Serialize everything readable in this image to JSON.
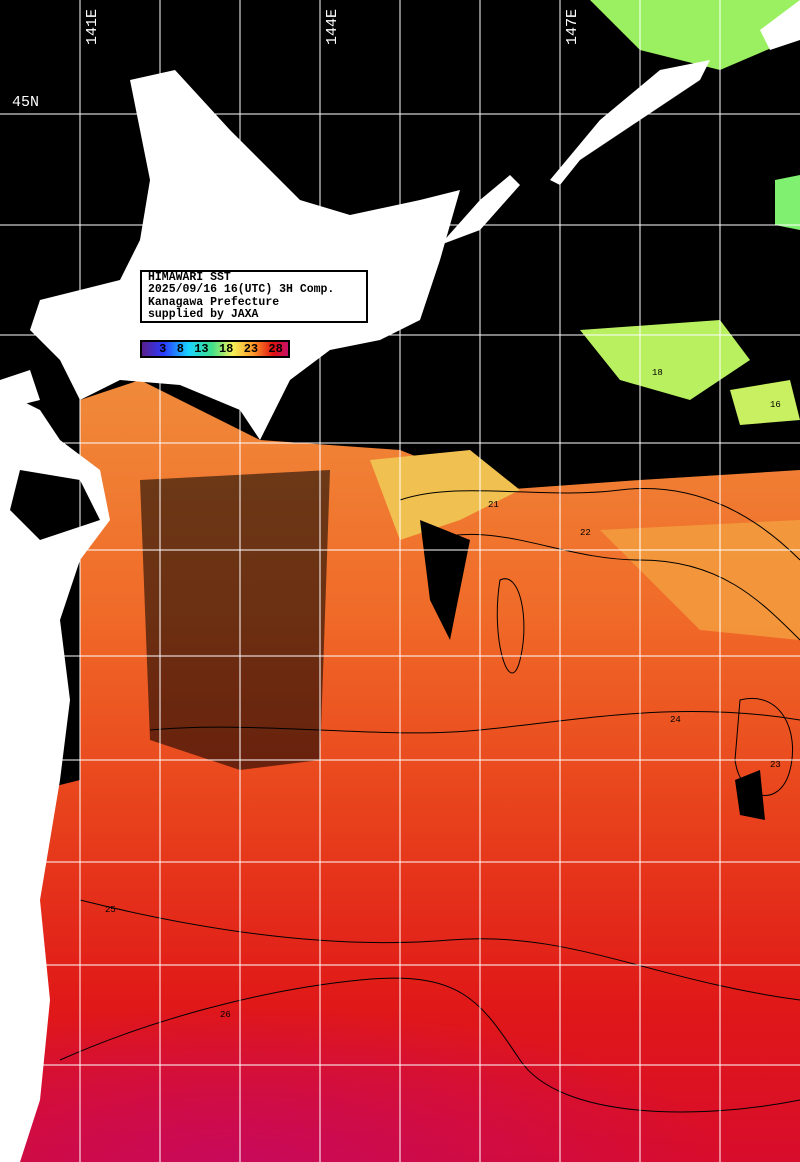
{
  "info_box": {
    "line1": "HIMAWARI SST",
    "line2": "2025/09/16 16(UTC) 3H Comp.",
    "line3": "Kanagawa Prefecture",
    "line4": "supplied by JAXA"
  },
  "colorbar": {
    "ticks": [
      "3",
      "8",
      "13",
      "18",
      "23",
      "28"
    ],
    "colors": [
      "#5a1e8c",
      "#2a3cff",
      "#19d4ff",
      "#3fe08a",
      "#f4f25a",
      "#ff9a2a",
      "#e01010",
      "#c8106a"
    ]
  },
  "grid": {
    "lon_labels": [
      "141E",
      "144E",
      "147E"
    ],
    "lat_labels": [
      "45N"
    ]
  },
  "contour_labels": [
    "21",
    "22",
    "23",
    "24",
    "25",
    "26",
    "18",
    "16"
  ],
  "colors": {
    "land": "#ffffff",
    "cloud": "#000000",
    "grid": "#ffffff"
  }
}
